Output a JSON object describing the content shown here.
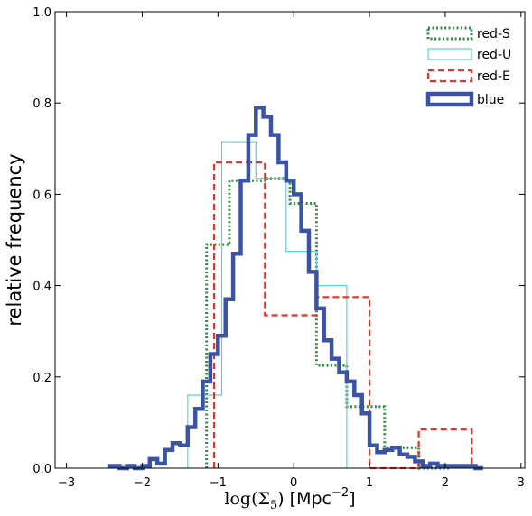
{
  "chart_data": {
    "type": "line",
    "drawstyle": "step",
    "title": "",
    "xlabel": "log(Σ₅) [Mpc⁻²]",
    "xlabel_math": "log(Σ",
    "xlabel_sub": "5",
    "xlabel_after": ") [Mpc",
    "xlabel_sup": "−2",
    "xlabel_close": "]",
    "ylabel": "relative frequency",
    "xlim": [
      -3.15,
      3.05
    ],
    "ylim": [
      0.0,
      1.0
    ],
    "xticks": [
      -3,
      -2,
      -1,
      0,
      1,
      2,
      3
    ],
    "xtick_labels": [
      "−3",
      "−2",
      "−1",
      "0",
      "1",
      "2",
      "3"
    ],
    "yticks": [
      0.0,
      0.2,
      0.4,
      0.6,
      0.8,
      1.0
    ],
    "ytick_labels": [
      "0.0",
      "0.2",
      "0.4",
      "0.6",
      "0.8",
      "1.0"
    ],
    "grid": false,
    "legend_position": "top-right",
    "series": [
      {
        "name": "red-S",
        "color": "#2e8b3a",
        "style": "dotted",
        "x": [
          -1.15,
          -1.15,
          -0.85,
          -0.85,
          -0.35,
          -0.35,
          -0.05,
          -0.05,
          0.3,
          0.3,
          0.7,
          0.7,
          1.2,
          1.2,
          1.65,
          1.65,
          2.05,
          2.05
        ],
        "y": [
          0.0,
          0.49,
          0.49,
          0.63,
          0.63,
          0.635,
          0.635,
          0.58,
          0.58,
          0.225,
          0.225,
          0.135,
          0.135,
          0.045,
          0.045,
          0.0,
          0.0,
          0.0
        ]
      },
      {
        "name": "red-U",
        "color": "#5ecfd8",
        "style": "solid-thin",
        "x": [
          -1.4,
          -1.4,
          -0.95,
          -0.95,
          -0.5,
          -0.5,
          -0.1,
          -0.1,
          0.3,
          0.3,
          0.7,
          0.7
        ],
        "y": [
          0.0,
          0.16,
          0.16,
          0.715,
          0.715,
          0.635,
          0.635,
          0.475,
          0.475,
          0.4,
          0.4,
          0.0
        ]
      },
      {
        "name": "red-E",
        "color": "#e8302a",
        "style": "dashed",
        "x": [
          -1.05,
          -1.05,
          -0.38,
          -0.38,
          0.3,
          0.3,
          1.0,
          1.0,
          1.65,
          1.65,
          2.35,
          2.35
        ],
        "y": [
          0.0,
          0.67,
          0.67,
          0.335,
          0.335,
          0.375,
          0.375,
          0.0,
          0.0,
          0.085,
          0.085,
          0.0
        ]
      },
      {
        "name": "blue",
        "color": "#3a53a4",
        "style": "solid-thick",
        "x": [
          -2.45,
          -2.3,
          -2.2,
          -2.1,
          -2.0,
          -1.9,
          -1.8,
          -1.7,
          -1.6,
          -1.5,
          -1.4,
          -1.3,
          -1.2,
          -1.1,
          -1.0,
          -0.9,
          -0.8,
          -0.7,
          -0.6,
          -0.5,
          -0.4,
          -0.3,
          -0.2,
          -0.1,
          0.0,
          0.1,
          0.2,
          0.3,
          0.4,
          0.5,
          0.6,
          0.7,
          0.8,
          0.9,
          1.0,
          1.1,
          1.2,
          1.3,
          1.4,
          1.5,
          1.6,
          1.7,
          1.8,
          1.9,
          2.0,
          2.1,
          2.2,
          2.3,
          2.4,
          2.5
        ],
        "y": [
          0.005,
          0.0,
          0.005,
          0.0,
          0.005,
          0.02,
          0.01,
          0.04,
          0.055,
          0.05,
          0.09,
          0.13,
          0.19,
          0.25,
          0.29,
          0.37,
          0.47,
          0.63,
          0.73,
          0.79,
          0.77,
          0.73,
          0.67,
          0.63,
          0.6,
          0.52,
          0.43,
          0.35,
          0.28,
          0.24,
          0.21,
          0.19,
          0.16,
          0.12,
          0.05,
          0.035,
          0.04,
          0.045,
          0.03,
          0.025,
          0.015,
          0.005,
          0.01,
          0.005,
          0.005,
          0.005,
          0.005,
          0.005,
          0.0,
          0.0
        ]
      }
    ]
  }
}
